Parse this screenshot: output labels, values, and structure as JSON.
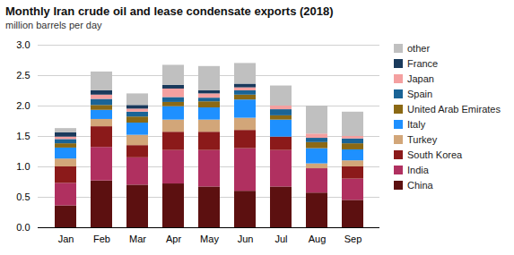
{
  "chart_data": {
    "type": "bar",
    "stacked": true,
    "title": "Monthly Iran crude oil and lease condensate exports (2018)",
    "subtitle": "million barrels per day",
    "categories": [
      "Jan",
      "Feb",
      "Mar",
      "Apr",
      "May",
      "Jun",
      "Jul",
      "Aug",
      "Sep"
    ],
    "series": [
      {
        "name": "China",
        "color": "#5c1010",
        "values": [
          0.36,
          0.77,
          0.7,
          0.72,
          0.67,
          0.6,
          0.67,
          0.57,
          0.45
        ]
      },
      {
        "name": "India",
        "color": "#b03060",
        "values": [
          0.37,
          0.55,
          0.45,
          0.55,
          0.6,
          0.7,
          0.6,
          0.4,
          0.35
        ]
      },
      {
        "name": "South Korea",
        "color": "#8b1a1a",
        "values": [
          0.27,
          0.34,
          0.2,
          0.3,
          0.3,
          0.3,
          0.22,
          0.0,
          0.2
        ]
      },
      {
        "name": "Turkey",
        "color": "#d2a679",
        "values": [
          0.13,
          0.12,
          0.17,
          0.2,
          0.2,
          0.2,
          0.0,
          0.08,
          0.1
        ]
      },
      {
        "name": "Italy",
        "color": "#1e90ff",
        "values": [
          0.18,
          0.15,
          0.2,
          0.22,
          0.2,
          0.3,
          0.28,
          0.25,
          0.18
        ]
      },
      {
        "name": "United Arab Emirates",
        "color": "#8b6914",
        "values": [
          0.07,
          0.08,
          0.1,
          0.07,
          0.1,
          0.08,
          0.07,
          0.1,
          0.1
        ]
      },
      {
        "name": "Spain",
        "color": "#1a6496",
        "values": [
          0.07,
          0.1,
          0.08,
          0.08,
          0.06,
          0.07,
          0.1,
          0.07,
          0.08
        ]
      },
      {
        "name": "Japan",
        "color": "#f4a0a0",
        "values": [
          0.04,
          0.07,
          0.05,
          0.14,
          0.07,
          0.05,
          0.06,
          0.07,
          0.04
        ]
      },
      {
        "name": "France",
        "color": "#1a3a5c",
        "values": [
          0.07,
          0.07,
          0.06,
          0.06,
          0.05,
          0.06,
          0.0,
          0.0,
          0.0
        ]
      },
      {
        "name": "other",
        "color": "#c0c0c0",
        "values": [
          0.07,
          0.31,
          0.19,
          0.33,
          0.4,
          0.34,
          0.33,
          0.46,
          0.4
        ]
      }
    ],
    "ylim": [
      0,
      3.0
    ],
    "yticks": [
      {
        "value": 0,
        "label": "0.0"
      },
      0.5,
      {
        "value": 1,
        "label": "1.0"
      },
      1.5,
      {
        "value": 2,
        "label": "2.0"
      },
      2.5,
      {
        "value": 3,
        "label": "3.0"
      }
    ],
    "grid": true,
    "legend": "right"
  }
}
